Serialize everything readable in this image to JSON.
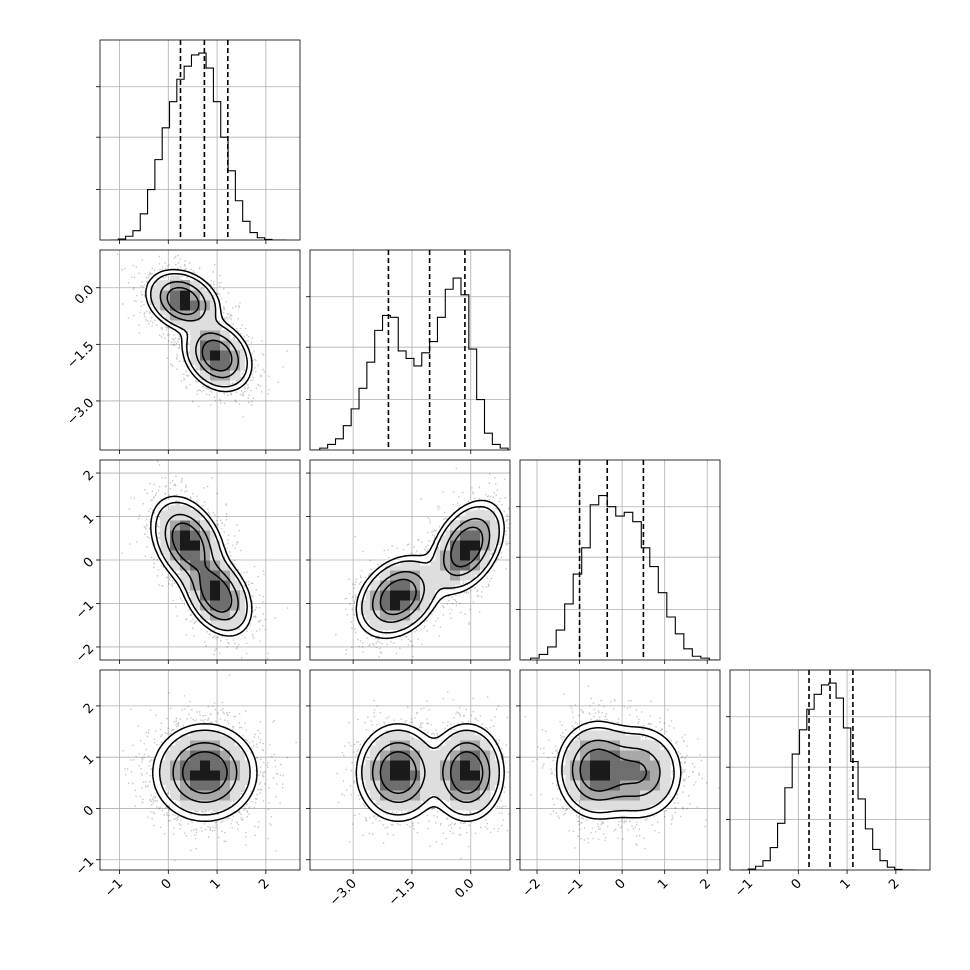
{
  "chart_data": {
    "type": "corner",
    "n_params": 4,
    "params": [
      {
        "ylim_hist": [
          0,
          1
        ],
        "xlim": [
          -1.4,
          2.7
        ],
        "ticks": [
          -1,
          0,
          1,
          2
        ],
        "tick_labels": [
          "−1",
          "0",
          "1",
          "2"
        ],
        "quantiles": [
          0.25,
          0.74,
          1.22
        ],
        "bins_centers": [
          -1.1,
          -0.95,
          -0.8,
          -0.65,
          -0.5,
          -0.35,
          -0.2,
          -0.05,
          0.1,
          0.25,
          0.4,
          0.55,
          0.7,
          0.85,
          1.0,
          1.15,
          1.3,
          1.45,
          1.6,
          1.75,
          1.9,
          2.05,
          2.2,
          2.35
        ],
        "hist": [
          0.0,
          0.005,
          0.02,
          0.05,
          0.14,
          0.27,
          0.43,
          0.6,
          0.74,
          0.86,
          0.93,
          0.99,
          1.0,
          0.92,
          0.74,
          0.55,
          0.37,
          0.21,
          0.1,
          0.04,
          0.012,
          0.003,
          0.0,
          0.0
        ]
      },
      {
        "ylim_hist": [
          0,
          1
        ],
        "xlim": [
          -4.1,
          1.0
        ],
        "ticks": [
          -3.0,
          -1.5,
          0.0
        ],
        "tick_labels": [
          "−3.0",
          "−1.5",
          "0.0"
        ],
        "quantiles": [
          -2.1,
          -1.05,
          -0.15
        ],
        "bins_centers": [
          -3.95,
          -3.75,
          -3.55,
          -3.35,
          -3.15,
          -2.95,
          -2.75,
          -2.55,
          -2.35,
          -2.15,
          -1.95,
          -1.75,
          -1.55,
          -1.35,
          -1.15,
          -0.95,
          -0.75,
          -0.55,
          -0.35,
          -0.15,
          0.05,
          0.25,
          0.45,
          0.65,
          0.85
        ],
        "hist": [
          0.0,
          0.01,
          0.03,
          0.06,
          0.13,
          0.22,
          0.33,
          0.47,
          0.64,
          0.72,
          0.71,
          0.53,
          0.49,
          0.45,
          0.52,
          0.58,
          0.71,
          0.86,
          0.92,
          0.83,
          0.54,
          0.27,
          0.09,
          0.03,
          0.01
        ]
      },
      {
        "ylim_hist": [
          0,
          1
        ],
        "xlim": [
          -2.4,
          2.3
        ],
        "ticks": [
          -2,
          -1,
          0,
          1,
          2
        ],
        "tick_labels": [
          "−2",
          "−1",
          "0",
          "1",
          "2"
        ],
        "quantiles": [
          -1.0,
          -0.35,
          0.5
        ],
        "bins_centers": [
          -2.25,
          -2.05,
          -1.85,
          -1.65,
          -1.45,
          -1.25,
          -1.05,
          -0.85,
          -0.65,
          -0.45,
          -0.25,
          -0.05,
          0.15,
          0.35,
          0.55,
          0.75,
          0.95,
          1.15,
          1.35,
          1.55,
          1.75,
          1.95,
          2.15
        ],
        "hist": [
          0.0,
          0.01,
          0.03,
          0.07,
          0.16,
          0.3,
          0.46,
          0.6,
          0.83,
          0.88,
          0.82,
          0.77,
          0.79,
          0.74,
          0.6,
          0.5,
          0.36,
          0.23,
          0.14,
          0.06,
          0.02,
          0.01,
          0.0
        ]
      },
      {
        "ylim_hist": [
          0,
          1
        ],
        "xlim": [
          -1.4,
          2.7
        ],
        "ticks": [
          -1,
          0,
          1,
          2
        ],
        "tick_labels": [
          "−1",
          "0",
          "1",
          "2"
        ],
        "quantiles": [
          0.22,
          0.65,
          1.12
        ],
        "bins_centers": [
          -1.1,
          -0.95,
          -0.8,
          -0.65,
          -0.5,
          -0.35,
          -0.2,
          -0.05,
          0.1,
          0.25,
          0.4,
          0.55,
          0.7,
          0.85,
          1.0,
          1.15,
          1.3,
          1.45,
          1.6,
          1.75,
          1.9,
          2.05,
          2.2,
          2.35
        ],
        "hist": [
          0.0,
          0.005,
          0.02,
          0.05,
          0.12,
          0.25,
          0.44,
          0.62,
          0.75,
          0.86,
          0.94,
          0.99,
          1.0,
          0.92,
          0.76,
          0.58,
          0.38,
          0.22,
          0.11,
          0.05,
          0.015,
          0.003,
          0.0,
          0.0
        ]
      }
    ],
    "y_axes": {
      "1": {
        "ylim": [
          -4.3,
          1.0
        ],
        "ticks": [
          0.0,
          -1.5,
          -3.0
        ],
        "tick_labels": [
          "0.0",
          "−1.5",
          "−3.0"
        ]
      },
      "2": {
        "ylim": [
          -2.3,
          2.3
        ],
        "ticks": [
          2,
          1,
          0,
          -1,
          -2
        ],
        "tick_labels": [
          "2",
          "1",
          "0",
          "−1",
          "−2"
        ]
      },
      "3": {
        "ylim": [
          -1.2,
          2.7
        ],
        "ticks": [
          2,
          1,
          0,
          -1
        ],
        "tick_labels": [
          "2",
          "1",
          "0",
          "−1"
        ]
      }
    },
    "density_panels": [
      {
        "row": 1,
        "col": 0,
        "components": [
          {
            "mean": [
              0.3,
              -0.35
            ],
            "sd": [
              0.32,
              0.35
            ],
            "rho": -0.25,
            "w": 0.5
          },
          {
            "mean": [
              1.0,
              -1.8
            ],
            "sd": [
              0.3,
              0.4
            ],
            "rho": -0.25,
            "w": 0.5
          }
        ]
      },
      {
        "row": 2,
        "col": 0,
        "components": [
          {
            "mean": [
              0.4,
              0.4
            ],
            "sd": [
              0.32,
              0.45
            ],
            "rho": -0.35,
            "w": 0.5
          },
          {
            "mean": [
              1.0,
              -0.8
            ],
            "sd": [
              0.3,
              0.4
            ],
            "rho": -0.35,
            "w": 0.5
          }
        ]
      },
      {
        "row": 2,
        "col": 1,
        "components": [
          {
            "mean": [
              -1.85,
              -0.85
            ],
            "sd": [
              0.45,
              0.4
            ],
            "rho": 0.3,
            "w": 0.5
          },
          {
            "mean": [
              -0.1,
              0.3
            ],
            "sd": [
              0.4,
              0.45
            ],
            "rho": 0.4,
            "w": 0.5
          }
        ]
      },
      {
        "row": 3,
        "col": 0,
        "components": [
          {
            "mean": [
              0.75,
              0.7
            ],
            "sd": [
              0.45,
              0.4
            ],
            "rho": 0.0,
            "w": 1.0
          }
        ]
      },
      {
        "row": 3,
        "col": 1,
        "components": [
          {
            "mean": [
              -1.85,
              0.7
            ],
            "sd": [
              0.45,
              0.4
            ],
            "rho": 0.0,
            "w": 0.5
          },
          {
            "mean": [
              -0.1,
              0.7
            ],
            "sd": [
              0.4,
              0.4
            ],
            "rho": 0.0,
            "w": 0.5
          }
        ]
      },
      {
        "row": 3,
        "col": 2,
        "components": [
          {
            "mean": [
              -0.6,
              0.75
            ],
            "sd": [
              0.4,
              0.4
            ],
            "rho": 0.0,
            "w": 0.6
          },
          {
            "mean": [
              0.4,
              0.7
            ],
            "sd": [
              0.45,
              0.4
            ],
            "rho": 0.0,
            "w": 0.4
          }
        ]
      }
    ],
    "contour_levels": [
      0.12,
      0.35,
      0.6,
      0.85
    ],
    "grid": true
  }
}
